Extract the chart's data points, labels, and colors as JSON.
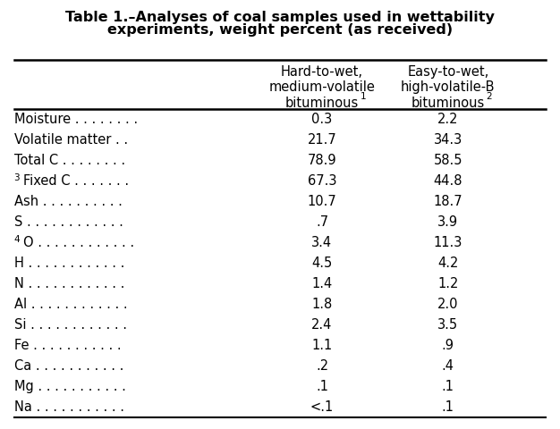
{
  "title_line1": "Table 1.–Analyses of coal samples used in wettability",
  "title_line2": "experiments, weight percent (as received)",
  "col1_header": [
    "Hard-to-wet,",
    "medium-volatile",
    "bituminous",
    "1"
  ],
  "col2_header": [
    "Easy-to-wet,",
    "high-volatile-B",
    "bituminous",
    "2"
  ],
  "rows": [
    {
      "label": "Moisture . . . . . . . .",
      "prefix": "",
      "col1": "0.3",
      "col2": "2.2"
    },
    {
      "label": "Volatile matter . .",
      "prefix": "",
      "col1": "21.7",
      "col2": "34.3"
    },
    {
      "label": "Total C . . . . . . . .",
      "prefix": "",
      "col1": "78.9",
      "col2": "58.5"
    },
    {
      "label": "Fixed C . . . . . . .",
      "prefix": "3",
      "col1": "67.3",
      "col2": "44.8"
    },
    {
      "label": "Ash . . . . . . . . . .",
      "prefix": "",
      "col1": "10.7",
      "col2": "18.7"
    },
    {
      "label": "S . . . . . . . . . . . .",
      "prefix": "",
      "col1": ".7",
      "col2": "3.9"
    },
    {
      "label": "O . . . . . . . . . . . .",
      "prefix": "4",
      "col1": "3.4",
      "col2": "11.3"
    },
    {
      "label": "H . . . . . . . . . . . .",
      "prefix": "",
      "col1": "4.5",
      "col2": "4.2"
    },
    {
      "label": "N . . . . . . . . . . . .",
      "prefix": "",
      "col1": "1.4",
      "col2": "1.2"
    },
    {
      "label": "Al . . . . . . . . . . . .",
      "prefix": "",
      "col1": "1.8",
      "col2": "2.0"
    },
    {
      "label": "Si . . . . . . . . . . . .",
      "prefix": "",
      "col1": "2.4",
      "col2": "3.5"
    },
    {
      "label": "Fe . . . . . . . . . . .",
      "prefix": "",
      "col1": "1.1",
      "col2": ".9"
    },
    {
      "label": "Ca . . . . . . . . . . .",
      "prefix": "",
      "col1": ".2",
      "col2": ".4"
    },
    {
      "label": "Mg . . . . . . . . . . .",
      "prefix": "",
      "col1": ".1",
      "col2": ".1"
    },
    {
      "label": "Na . . . . . . . . . . .",
      "prefix": "",
      "col1": "<.1",
      "col2": ".1"
    }
  ],
  "bg_color": "#ffffff",
  "text_color": "#000000",
  "font_size": 10.5,
  "title_font_size": 11.5
}
